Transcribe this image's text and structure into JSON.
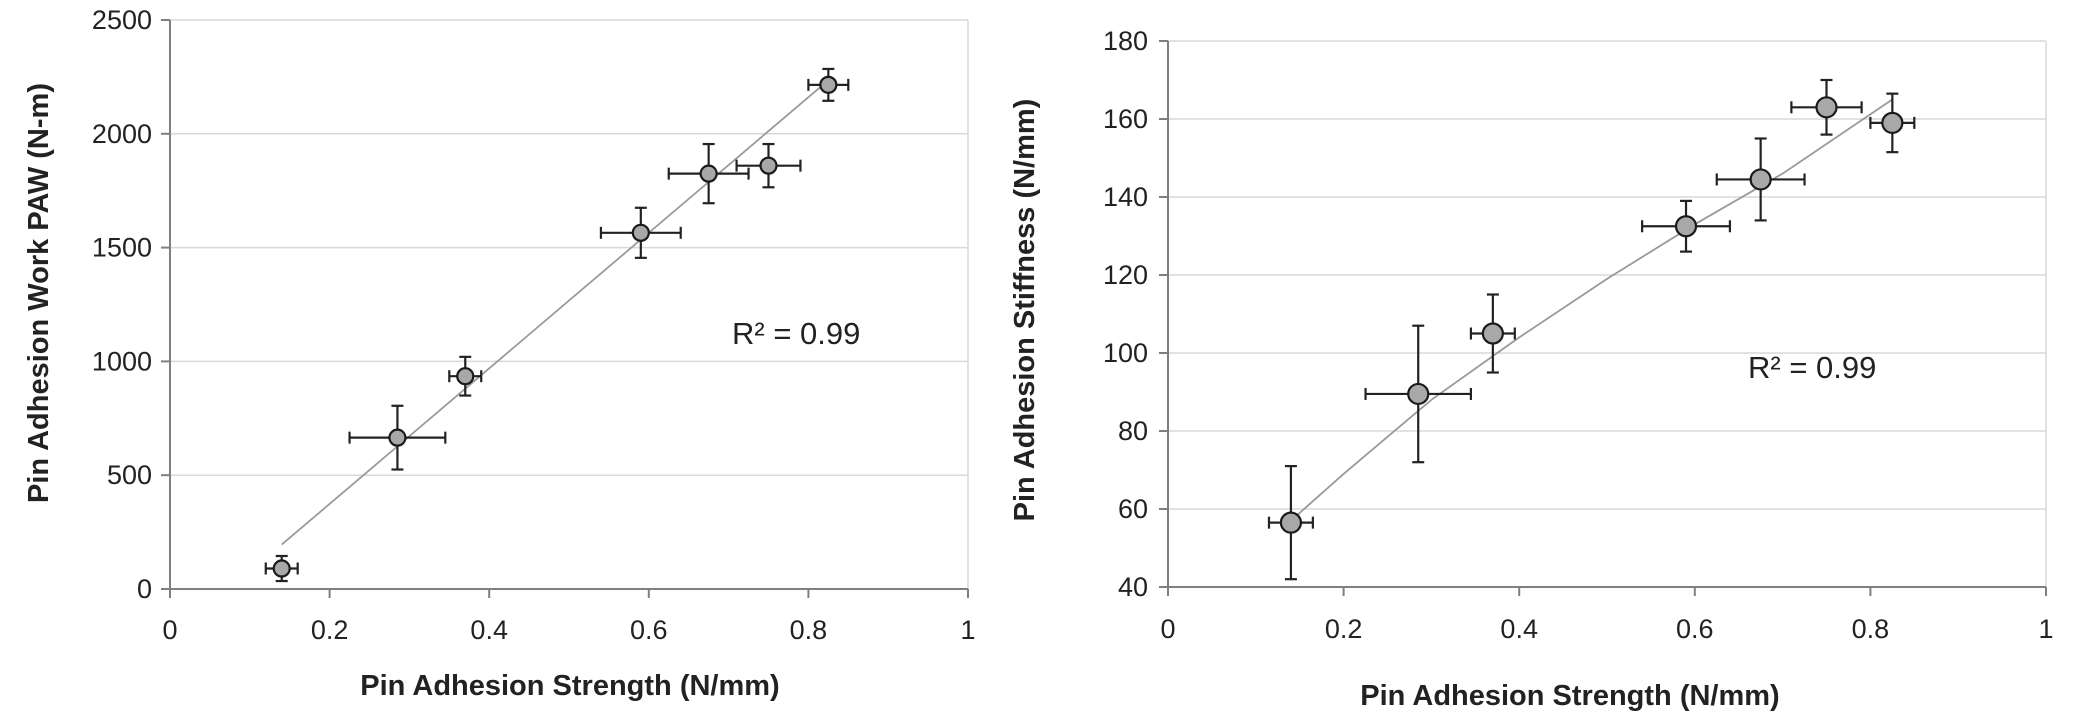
{
  "chart_data": [
    {
      "type": "scatter",
      "title": "",
      "xlabel": "Pin Adhesion Strength (N/mm)",
      "ylabel": "Pin Adhesion Work PAW (N-m)",
      "xlim": [
        0,
        1
      ],
      "ylim": [
        0,
        2500
      ],
      "x_ticks": [
        "0",
        "0.2",
        "0.4",
        "0.6",
        "0.8",
        "1"
      ],
      "y_ticks": [
        "0",
        "500",
        "1000",
        "1500",
        "2000",
        "2500"
      ],
      "grid": "horizontal",
      "trendline": "linear",
      "annotation": "R² = 0.99",
      "marker_color": "#a8a8a8",
      "points": [
        {
          "x": 0.14,
          "y": 90,
          "x_err": 0.02,
          "y_err": 55
        },
        {
          "x": 0.285,
          "y": 665,
          "x_err": 0.06,
          "y_err": 140
        },
        {
          "x": 0.37,
          "y": 935,
          "x_err": 0.02,
          "y_err": 85
        },
        {
          "x": 0.59,
          "y": 1565,
          "x_err": 0.05,
          "y_err": 110
        },
        {
          "x": 0.675,
          "y": 1825,
          "x_err": 0.05,
          "y_err": 130
        },
        {
          "x": 0.75,
          "y": 1860,
          "x_err": 0.04,
          "y_err": 95
        },
        {
          "x": 0.825,
          "y": 2215,
          "x_err": 0.025,
          "y_err": 70
        }
      ],
      "fit": [
        [
          0.14,
          195
        ],
        [
          0.825,
          2235
        ]
      ]
    },
    {
      "type": "scatter",
      "title": "",
      "xlabel": "Pin Adhesion Strength (N/mm)",
      "ylabel": "Pin Adhesion Stiffness (N/mm)",
      "xlim": [
        0,
        1
      ],
      "ylim": [
        40,
        180
      ],
      "x_ticks": [
        "0",
        "0.2",
        "0.4",
        "0.6",
        "0.8",
        "1"
      ],
      "y_ticks": [
        "40",
        "60",
        "80",
        "100",
        "120",
        "140",
        "160",
        "180"
      ],
      "grid": "horizontal",
      "trendline": "curve",
      "annotation": "R² = 0.99",
      "marker_color": "#a8a8a8",
      "points": [
        {
          "x": 0.14,
          "y": 56.5,
          "x_err": 0.025,
          "y_err": 14.5
        },
        {
          "x": 0.285,
          "y": 89.5,
          "x_err": 0.06,
          "y_err": 17.5
        },
        {
          "x": 0.37,
          "y": 105,
          "x_err": 0.025,
          "y_err": 10
        },
        {
          "x": 0.59,
          "y": 132.5,
          "x_err": 0.05,
          "y_err": 6.5
        },
        {
          "x": 0.675,
          "y": 144.5,
          "x_err": 0.05,
          "y_err": 10.5
        },
        {
          "x": 0.75,
          "y": 163,
          "x_err": 0.04,
          "y_err": 7
        },
        {
          "x": 0.825,
          "y": 159,
          "x_err": 0.025,
          "y_err": 7.5
        }
      ],
      "fit": [
        [
          0.14,
          57
        ],
        [
          0.2,
          69
        ],
        [
          0.3,
          88
        ],
        [
          0.4,
          104
        ],
        [
          0.5,
          119
        ],
        [
          0.6,
          133
        ],
        [
          0.7,
          146
        ],
        [
          0.825,
          165
        ]
      ]
    }
  ]
}
